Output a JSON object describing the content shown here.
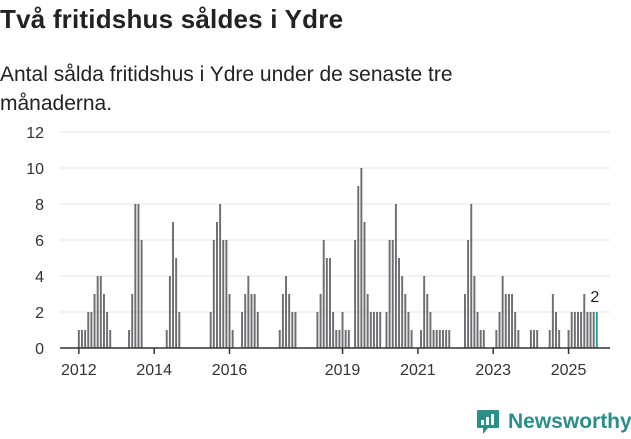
{
  "header": {
    "title": "Två fritidshus såldes i Ydre",
    "subtitle": "Antal sålda fritidshus i Ydre under de senaste tre månaderna."
  },
  "brand": {
    "name": "Newsworthy",
    "icon": "newsworthy-logo-icon",
    "color": "#2a8f8a"
  },
  "chart_data": {
    "type": "bar",
    "title": "Antal sålda fritidshus i Ydre under de senaste tre månaderna.",
    "xlabel": "",
    "ylabel": "",
    "ylim": [
      0,
      12
    ],
    "yticks": [
      "0",
      "2",
      "4",
      "6",
      "8",
      "10",
      "12"
    ],
    "xticks": [
      {
        "label": "2012",
        "x": 2012
      },
      {
        "label": "2014",
        "x": 2014
      },
      {
        "label": "2016",
        "x": 2016
      },
      {
        "label": "2019",
        "x": 2019
      },
      {
        "label": "2021",
        "x": 2021
      },
      {
        "label": "2023",
        "x": 2023
      },
      {
        "label": "2025",
        "x": 2025
      }
    ],
    "x_range": [
      2011.5,
      2026.1
    ],
    "grid": true,
    "bar_color": "#6f6e73",
    "highlight_color": "#2a9d96",
    "annotation": {
      "text": "2",
      "target": "last"
    },
    "series": [
      {
        "name": "Antal sålda fritidshus",
        "values": [
          {
            "x": 2012.0,
            "v": 1
          },
          {
            "x": 2012.083,
            "v": 1
          },
          {
            "x": 2012.167,
            "v": 1
          },
          {
            "x": 2012.25,
            "v": 2
          },
          {
            "x": 2012.333,
            "v": 2
          },
          {
            "x": 2012.417,
            "v": 3
          },
          {
            "x": 2012.5,
            "v": 4
          },
          {
            "x": 2012.583,
            "v": 4
          },
          {
            "x": 2012.667,
            "v": 3
          },
          {
            "x": 2012.75,
            "v": 2
          },
          {
            "x": 2012.833,
            "v": 1
          },
          {
            "x": 2013.333,
            "v": 1
          },
          {
            "x": 2013.417,
            "v": 3
          },
          {
            "x": 2013.5,
            "v": 8
          },
          {
            "x": 2013.583,
            "v": 8
          },
          {
            "x": 2013.667,
            "v": 6
          },
          {
            "x": 2014.333,
            "v": 1
          },
          {
            "x": 2014.417,
            "v": 4
          },
          {
            "x": 2014.5,
            "v": 7
          },
          {
            "x": 2014.583,
            "v": 5
          },
          {
            "x": 2014.667,
            "v": 2
          },
          {
            "x": 2015.5,
            "v": 2
          },
          {
            "x": 2015.583,
            "v": 6
          },
          {
            "x": 2015.667,
            "v": 7
          },
          {
            "x": 2015.75,
            "v": 8
          },
          {
            "x": 2015.833,
            "v": 6
          },
          {
            "x": 2015.917,
            "v": 6
          },
          {
            "x": 2016.0,
            "v": 3
          },
          {
            "x": 2016.083,
            "v": 1
          },
          {
            "x": 2016.333,
            "v": 2
          },
          {
            "x": 2016.417,
            "v": 3
          },
          {
            "x": 2016.5,
            "v": 4
          },
          {
            "x": 2016.583,
            "v": 3
          },
          {
            "x": 2016.667,
            "v": 3
          },
          {
            "x": 2016.75,
            "v": 2
          },
          {
            "x": 2017.333,
            "v": 1
          },
          {
            "x": 2017.417,
            "v": 3
          },
          {
            "x": 2017.5,
            "v": 4
          },
          {
            "x": 2017.583,
            "v": 3
          },
          {
            "x": 2017.667,
            "v": 2
          },
          {
            "x": 2017.75,
            "v": 2
          },
          {
            "x": 2018.333,
            "v": 2
          },
          {
            "x": 2018.417,
            "v": 3
          },
          {
            "x": 2018.5,
            "v": 6
          },
          {
            "x": 2018.583,
            "v": 5
          },
          {
            "x": 2018.667,
            "v": 5
          },
          {
            "x": 2018.75,
            "v": 2
          },
          {
            "x": 2018.833,
            "v": 1
          },
          {
            "x": 2018.917,
            "v": 1
          },
          {
            "x": 2019.0,
            "v": 2
          },
          {
            "x": 2019.083,
            "v": 1
          },
          {
            "x": 2019.167,
            "v": 1
          },
          {
            "x": 2019.333,
            "v": 6
          },
          {
            "x": 2019.417,
            "v": 9
          },
          {
            "x": 2019.5,
            "v": 10
          },
          {
            "x": 2019.583,
            "v": 7
          },
          {
            "x": 2019.667,
            "v": 3
          },
          {
            "x": 2019.75,
            "v": 2
          },
          {
            "x": 2019.833,
            "v": 2
          },
          {
            "x": 2019.917,
            "v": 2
          },
          {
            "x": 2020.0,
            "v": 2
          },
          {
            "x": 2020.167,
            "v": 2
          },
          {
            "x": 2020.25,
            "v": 6
          },
          {
            "x": 2020.333,
            "v": 6
          },
          {
            "x": 2020.417,
            "v": 8
          },
          {
            "x": 2020.5,
            "v": 5
          },
          {
            "x": 2020.583,
            "v": 4
          },
          {
            "x": 2020.667,
            "v": 3
          },
          {
            "x": 2020.75,
            "v": 2
          },
          {
            "x": 2020.833,
            "v": 1
          },
          {
            "x": 2021.083,
            "v": 1
          },
          {
            "x": 2021.167,
            "v": 4
          },
          {
            "x": 2021.25,
            "v": 3
          },
          {
            "x": 2021.333,
            "v": 2
          },
          {
            "x": 2021.417,
            "v": 1
          },
          {
            "x": 2021.5,
            "v": 1
          },
          {
            "x": 2021.583,
            "v": 1
          },
          {
            "x": 2021.667,
            "v": 1
          },
          {
            "x": 2021.75,
            "v": 1
          },
          {
            "x": 2021.833,
            "v": 1
          },
          {
            "x": 2022.25,
            "v": 3
          },
          {
            "x": 2022.333,
            "v": 6
          },
          {
            "x": 2022.417,
            "v": 8
          },
          {
            "x": 2022.5,
            "v": 4
          },
          {
            "x": 2022.583,
            "v": 2
          },
          {
            "x": 2022.667,
            "v": 1
          },
          {
            "x": 2022.75,
            "v": 1
          },
          {
            "x": 2023.083,
            "v": 1
          },
          {
            "x": 2023.167,
            "v": 2
          },
          {
            "x": 2023.25,
            "v": 4
          },
          {
            "x": 2023.333,
            "v": 3
          },
          {
            "x": 2023.417,
            "v": 3
          },
          {
            "x": 2023.5,
            "v": 3
          },
          {
            "x": 2023.583,
            "v": 2
          },
          {
            "x": 2023.667,
            "v": 1
          },
          {
            "x": 2024.0,
            "v": 1
          },
          {
            "x": 2024.083,
            "v": 1
          },
          {
            "x": 2024.167,
            "v": 1
          },
          {
            "x": 2024.5,
            "v": 1
          },
          {
            "x": 2024.583,
            "v": 3
          },
          {
            "x": 2024.667,
            "v": 2
          },
          {
            "x": 2024.75,
            "v": 1
          },
          {
            "x": 2025.0,
            "v": 1
          },
          {
            "x": 2025.083,
            "v": 2
          },
          {
            "x": 2025.167,
            "v": 2
          },
          {
            "x": 2025.25,
            "v": 2
          },
          {
            "x": 2025.333,
            "v": 2
          },
          {
            "x": 2025.417,
            "v": 3
          },
          {
            "x": 2025.5,
            "v": 2
          },
          {
            "x": 2025.583,
            "v": 2
          },
          {
            "x": 2025.667,
            "v": 2
          },
          {
            "x": 2025.75,
            "v": 2
          }
        ]
      }
    ]
  }
}
